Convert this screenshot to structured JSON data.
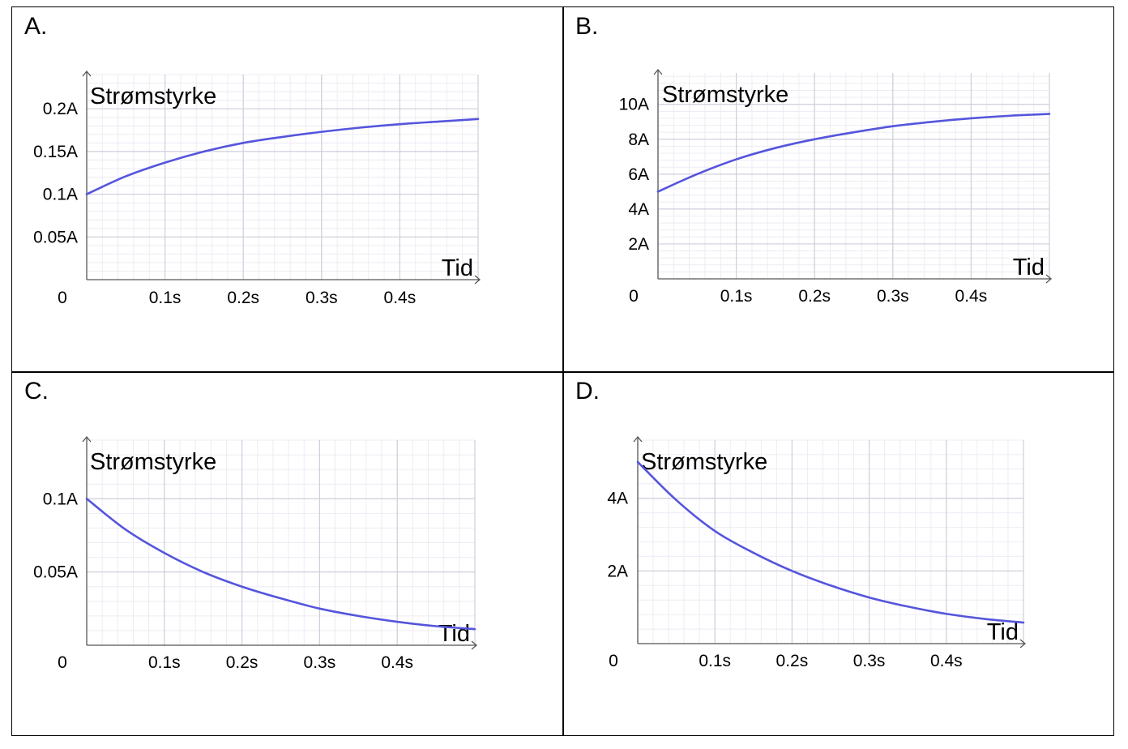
{
  "chart_data": [
    {
      "panel_label": "A.",
      "type": "line",
      "ylabel": "Strømstyrke",
      "xlabel": "Tid",
      "origin_label": "0",
      "xticks": [
        0.1,
        0.2,
        0.3,
        0.4
      ],
      "xtick_labels": [
        "0.1s",
        "0.2s",
        "0.3s",
        "0.4s"
      ],
      "yticks": [
        0.05,
        0.1,
        0.15,
        0.2
      ],
      "ytick_labels": [
        "0.05A",
        "0.1A",
        "0.15A",
        "0.2A"
      ],
      "xlim": [
        0,
        0.5
      ],
      "ylim": [
        0,
        0.24
      ],
      "grid": true,
      "series": [
        {
          "color": "#5555dd",
          "x": [
            0,
            0.05,
            0.1,
            0.15,
            0.2,
            0.25,
            0.3,
            0.35,
            0.4,
            0.45,
            0.5
          ],
          "y": [
            0.1,
            0.121,
            0.137,
            0.15,
            0.16,
            0.167,
            0.173,
            0.178,
            0.182,
            0.185,
            0.188
          ]
        }
      ]
    },
    {
      "panel_label": "B.",
      "type": "line",
      "ylabel": "Strømstyrke",
      "xlabel": "Tid",
      "origin_label": "0",
      "xticks": [
        0.1,
        0.2,
        0.3,
        0.4
      ],
      "xtick_labels": [
        "0.1s",
        "0.2s",
        "0.3s",
        "0.4s"
      ],
      "yticks": [
        2,
        4,
        6,
        8,
        10
      ],
      "ytick_labels": [
        "2A",
        "4A",
        "6A",
        "8A",
        "10A"
      ],
      "xlim": [
        0,
        0.5
      ],
      "ylim": [
        0,
        11.8
      ],
      "grid": true,
      "series": [
        {
          "color": "#5555dd",
          "x": [
            0,
            0.05,
            0.1,
            0.15,
            0.2,
            0.25,
            0.3,
            0.35,
            0.4,
            0.45,
            0.5
          ],
          "y": [
            5.0,
            6.0,
            6.85,
            7.5,
            8.0,
            8.4,
            8.75,
            9.0,
            9.2,
            9.35,
            9.45
          ]
        }
      ]
    },
    {
      "panel_label": "C.",
      "type": "line",
      "ylabel": "Strømstyrke",
      "xlabel": "Tid",
      "origin_label": "0",
      "xticks": [
        0.1,
        0.2,
        0.3,
        0.4
      ],
      "xtick_labels": [
        "0.1s",
        "0.2s",
        "0.3s",
        "0.4s"
      ],
      "yticks": [
        0.05,
        0.1
      ],
      "ytick_labels": [
        "0.05A",
        "0.1A"
      ],
      "xlim": [
        0,
        0.5
      ],
      "ylim": [
        0,
        0.14
      ],
      "grid": true,
      "series": [
        {
          "color": "#5555dd",
          "x": [
            0,
            0.05,
            0.1,
            0.15,
            0.2,
            0.25,
            0.3,
            0.35,
            0.4,
            0.45,
            0.5
          ],
          "y": [
            0.1,
            0.079,
            0.063,
            0.05,
            0.04,
            0.032,
            0.025,
            0.02,
            0.016,
            0.013,
            0.011
          ]
        }
      ]
    },
    {
      "panel_label": "D.",
      "type": "line",
      "ylabel": "Strømstyrke",
      "xlabel": "Tid",
      "origin_label": "0",
      "xticks": [
        0.1,
        0.2,
        0.3,
        0.4
      ],
      "xtick_labels": [
        "0.1s",
        "0.2s",
        "0.3s",
        "0.4s"
      ],
      "yticks": [
        2,
        4
      ],
      "ytick_labels": [
        "2A",
        "4A"
      ],
      "xlim": [
        0,
        0.5
      ],
      "ylim": [
        0,
        5.6
      ],
      "grid": true,
      "series": [
        {
          "color": "#5555dd",
          "x": [
            0,
            0.05,
            0.1,
            0.15,
            0.2,
            0.25,
            0.3,
            0.35,
            0.4,
            0.45,
            0.5
          ],
          "y": [
            5.0,
            3.95,
            3.1,
            2.5,
            2.0,
            1.6,
            1.27,
            1.02,
            0.82,
            0.68,
            0.58
          ]
        }
      ]
    }
  ]
}
